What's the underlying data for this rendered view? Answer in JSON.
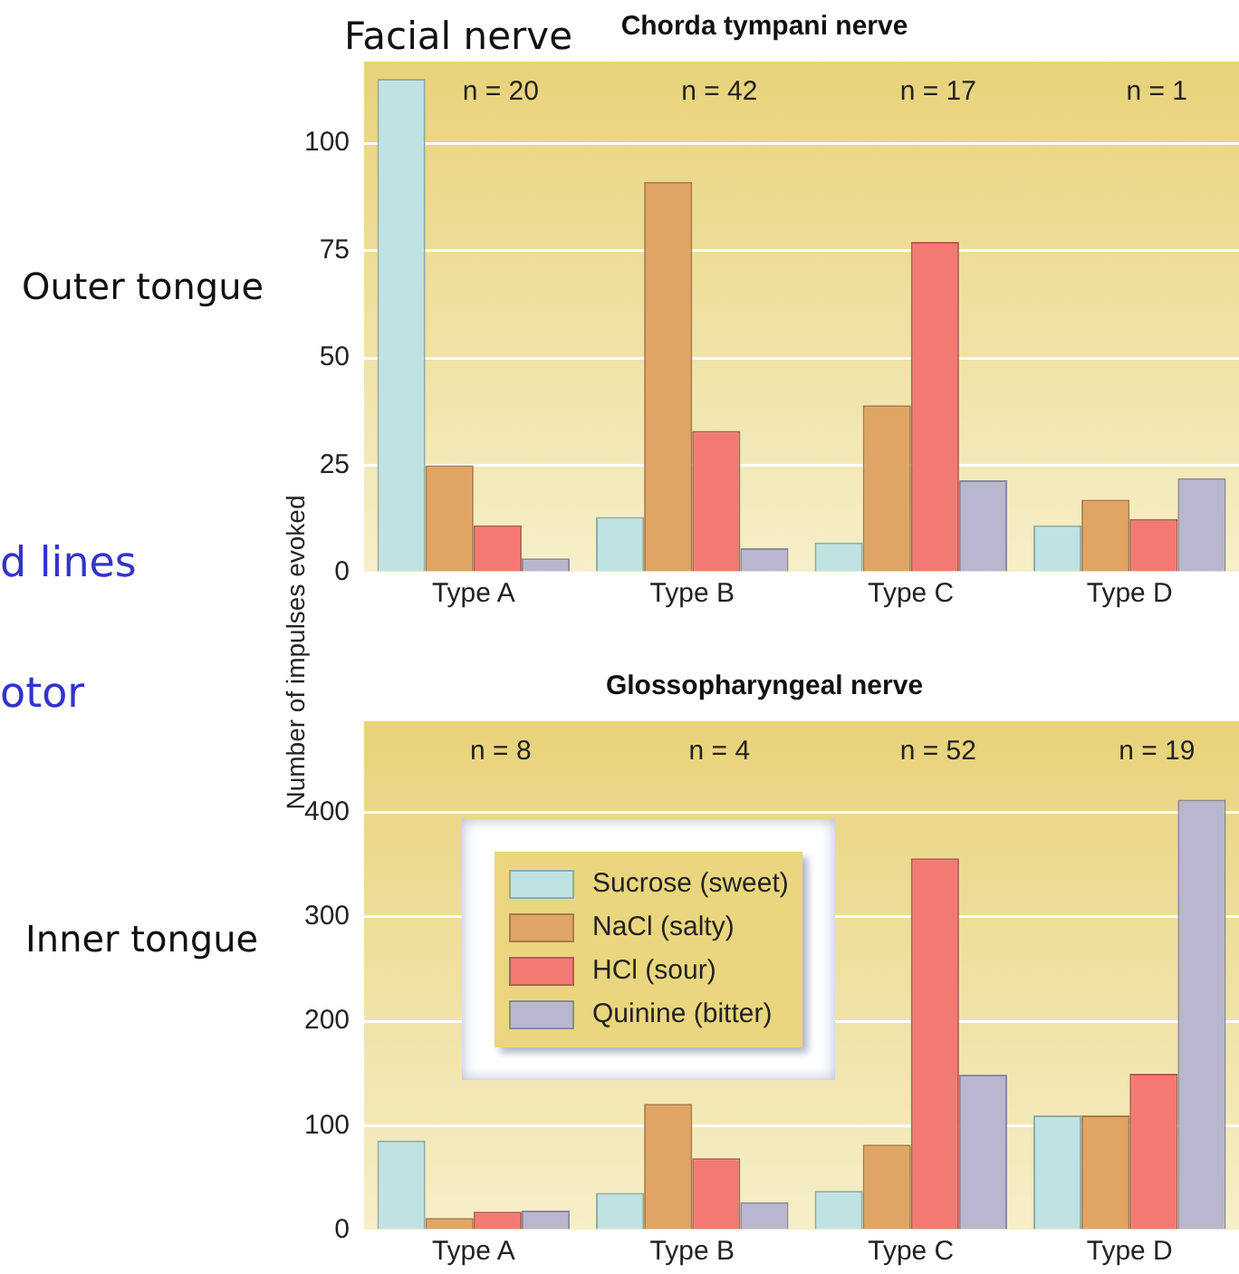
{
  "chart_data": [
    {
      "type": "bar",
      "title": "Chorda tympani nerve",
      "ylabel": "Number of impulses evoked",
      "categories": [
        "Type A",
        "Type B",
        "Type C",
        "Type D"
      ],
      "series": [
        {
          "color": "#bfe3e3",
          "values": [
            115,
            13,
            7,
            11
          ]
        },
        {
          "color": "#e0a464",
          "values": [
            25,
            91,
            39,
            17
          ]
        },
        {
          "color": "#f27a72",
          "values": [
            11,
            33,
            77,
            12.5
          ]
        },
        {
          "color": "#b9b6cf",
          "values": [
            3.3,
            5.7,
            21.5,
            22
          ]
        }
      ],
      "ylim": [
        0,
        119
      ],
      "yticks": [
        0,
        25,
        50,
        75,
        100
      ],
      "grid": "y",
      "legend": false,
      "annotations": [
        "n = 20",
        "n = 42",
        "n = 17",
        "n = 1",
        "Facial nerve",
        "Outer tongue",
        "d lines",
        "otor"
      ]
    },
    {
      "type": "bar",
      "title": "Glossopharyngeal nerve",
      "categories": [
        "Type A",
        "Type B",
        "Type C",
        "Type D"
      ],
      "series": [
        {
          "name": "Sucrose (sweet)",
          "color": "#bfe3e3",
          "values": [
            86,
            36,
            38,
            110
          ]
        },
        {
          "name": "NaCl (salty)",
          "color": "#e0a464",
          "values": [
            12,
            121,
            82,
            110
          ]
        },
        {
          "name": "HCl (sour)",
          "color": "#f27a72",
          "values": [
            18,
            69,
            356,
            150
          ]
        },
        {
          "name": "Quinine (bitter)",
          "color": "#b9b6cf",
          "values": [
            19,
            27,
            149,
            412
          ]
        }
      ],
      "ylim": [
        0,
        487
      ],
      "yticks": [
        0,
        100,
        200,
        300,
        400
      ],
      "grid": "y",
      "legend": "top left",
      "annotations": [
        "n = 8",
        "n = 4",
        "n = 52",
        "n = 19",
        "Inner tongue"
      ]
    }
  ]
}
